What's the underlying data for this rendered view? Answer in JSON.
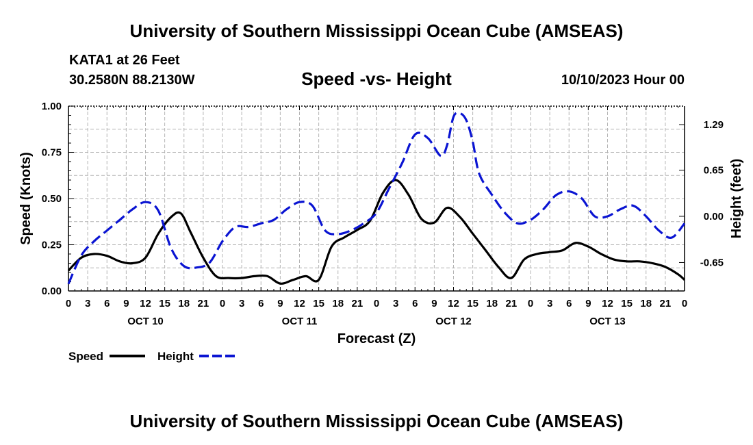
{
  "header": {
    "title": "University of Southern Mississippi Ocean Cube (AMSEAS)",
    "footer_title": "University of Southern Mississippi Ocean Cube (AMSEAS)",
    "station": "KATA1 at 26 Feet",
    "coords": "30.2580N  88.2130W",
    "date": "10/10/2023 Hour 00"
  },
  "colors": {
    "speed": "#000000",
    "height": "#0a14d2",
    "grid": "#b4b4b4"
  },
  "chart_data": {
    "type": "line",
    "title": "Speed -vs- Height",
    "xlabel": "Forecast (Z)",
    "ylabel": "Speed (Knots)",
    "y2label": "Height (feet)",
    "xlim": [
      0,
      96
    ],
    "ylim": [
      0,
      1
    ],
    "y2lim": [
      -1.05,
      1.55
    ],
    "x_tick_labels": [
      "0",
      "3",
      "6",
      "9",
      "12",
      "15",
      "18",
      "21",
      "0",
      "3",
      "6",
      "9",
      "12",
      "15",
      "18",
      "21",
      "0",
      "3",
      "6",
      "9",
      "12",
      "15",
      "18",
      "21",
      "0",
      "3",
      "6",
      "9",
      "12",
      "15",
      "18",
      "21",
      "0"
    ],
    "y_ticks": [
      {
        "value": 0,
        "label": "0.00"
      },
      {
        "value": 0.25,
        "label": "0.25"
      },
      {
        "value": 0.5,
        "label": "0.50"
      },
      {
        "value": 0.75,
        "label": "0.75"
      },
      {
        "value": 1,
        "label": "1.00"
      }
    ],
    "y2_ticks": [
      {
        "value": -0.65,
        "label": "-0.65"
      },
      {
        "value": 0,
        "label": "0.00"
      },
      {
        "value": 0.65,
        "label": "0.65"
      },
      {
        "value": 1.29,
        "label": "1.29"
      }
    ],
    "day_labels": [
      {
        "x": 12,
        "label": "OCT 10"
      },
      {
        "x": 36,
        "label": "OCT 11"
      },
      {
        "x": 60,
        "label": "OCT 12"
      },
      {
        "x": 84,
        "label": "OCT 13"
      }
    ],
    "series": [
      {
        "name": "Speed",
        "axis": "left",
        "style": "solid",
        "x": [
          0,
          2,
          4,
          6,
          8,
          10,
          12,
          14,
          16,
          17.5,
          19,
          21,
          23,
          25,
          27,
          29,
          31,
          33,
          35,
          37,
          39,
          41,
          43,
          45,
          47,
          49,
          51,
          53,
          55,
          57,
          59,
          61,
          63,
          65,
          67,
          69,
          71,
          73,
          75,
          77,
          79,
          81,
          83,
          85,
          87,
          89,
          91,
          93,
          95,
          96
        ],
        "values": [
          0.11,
          0.18,
          0.2,
          0.19,
          0.16,
          0.15,
          0.18,
          0.31,
          0.4,
          0.42,
          0.32,
          0.18,
          0.08,
          0.07,
          0.07,
          0.08,
          0.08,
          0.04,
          0.06,
          0.08,
          0.06,
          0.24,
          0.29,
          0.33,
          0.38,
          0.53,
          0.6,
          0.52,
          0.39,
          0.37,
          0.45,
          0.4,
          0.31,
          0.22,
          0.13,
          0.07,
          0.17,
          0.2,
          0.21,
          0.22,
          0.26,
          0.24,
          0.2,
          0.17,
          0.16,
          0.16,
          0.15,
          0.13,
          0.09,
          0.06
        ]
      },
      {
        "name": "Height",
        "axis": "right",
        "style": "dashed",
        "x": [
          0,
          2,
          4,
          6,
          8,
          10,
          12,
          14,
          16,
          18,
          20,
          22,
          24,
          26,
          28,
          30,
          32,
          34,
          36,
          38,
          40,
          42,
          44,
          46,
          48,
          50,
          52,
          54,
          56,
          58,
          59,
          60,
          61,
          62,
          63,
          64,
          66,
          68,
          70,
          72,
          74,
          76,
          78,
          80,
          82,
          84,
          86,
          88,
          90,
          92,
          94,
          96
        ],
        "values": [
          -0.95,
          -0.55,
          -0.35,
          -0.2,
          -0.05,
          0.1,
          0.2,
          0.08,
          -0.45,
          -0.7,
          -0.72,
          -0.65,
          -0.35,
          -0.15,
          -0.15,
          -0.1,
          -0.05,
          0.1,
          0.2,
          0.15,
          -0.2,
          -0.25,
          -0.2,
          -0.1,
          0.05,
          0.4,
          0.75,
          1.15,
          1.1,
          0.85,
          1.0,
          1.4,
          1.45,
          1.35,
          1.05,
          0.6,
          0.3,
          0.05,
          -0.1,
          -0.05,
          0.1,
          0.3,
          0.35,
          0.25,
          0.0,
          0.0,
          0.1,
          0.15,
          0.0,
          -0.2,
          -0.3,
          -0.1
        ]
      }
    ],
    "legend": [
      {
        "label": "Speed",
        "series": "Speed"
      },
      {
        "label": "Height",
        "series": "Height"
      }
    ]
  }
}
